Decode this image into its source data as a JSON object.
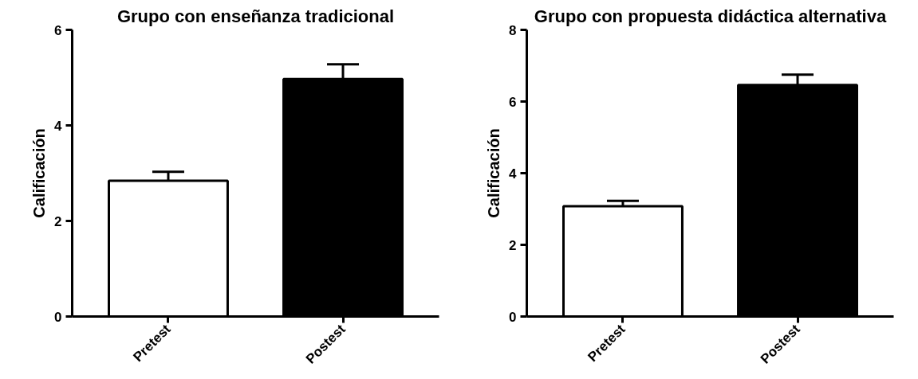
{
  "chart_data": [
    {
      "type": "bar",
      "title": "Grupo con enseñanza tradicional",
      "ylabel": "Calificación",
      "categories": [
        "Pretest",
        "Postest"
      ],
      "values": [
        2.84,
        4.97
      ],
      "colors": [
        "#ffffff",
        "#000000"
      ],
      "errors": [
        [
          2.84,
          3.03
        ],
        [
          4.97,
          5.28
        ]
      ],
      "ylim": [
        0,
        6
      ],
      "yticks": [
        0,
        2,
        4,
        6
      ],
      "grid": false
    },
    {
      "type": "bar",
      "title": "Grupo con propuesta didáctica alternativa",
      "ylabel": "Calificación",
      "categories": [
        "Pretest",
        "Postest"
      ],
      "values": [
        3.08,
        6.46
      ],
      "colors": [
        "#ffffff",
        "#000000"
      ],
      "errors": [
        [
          3.08,
          3.23
        ],
        [
          6.46,
          6.75
        ]
      ],
      "ylim": [
        0,
        8
      ],
      "yticks": [
        0,
        2,
        4,
        6,
        8
      ],
      "grid": false
    }
  ]
}
